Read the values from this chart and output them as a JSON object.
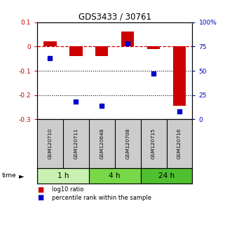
{
  "title": "GDS3433 / 30761",
  "samples": [
    "GSM120710",
    "GSM120711",
    "GSM120648",
    "GSM120708",
    "GSM120715",
    "GSM120716"
  ],
  "log10_ratio": [
    0.022,
    -0.04,
    -0.038,
    0.062,
    -0.01,
    -0.245
  ],
  "percentile_rank": [
    63,
    18,
    14,
    78,
    47,
    8
  ],
  "time_groups": [
    {
      "label": "1 h",
      "start": 0,
      "end": 2,
      "color": "#c8f0b0"
    },
    {
      "label": "4 h",
      "start": 2,
      "end": 4,
      "color": "#78d848"
    },
    {
      "label": "24 h",
      "start": 4,
      "end": 6,
      "color": "#50c030"
    }
  ],
  "bar_color": "#cc0000",
  "dot_color": "#0000cc",
  "ylim_left": [
    -0.3,
    0.1
  ],
  "ylim_right": [
    0,
    100
  ],
  "yticks_left": [
    0.1,
    0.0,
    -0.1,
    -0.2,
    -0.3
  ],
  "yticks_right": [
    100,
    75,
    50,
    25,
    0
  ],
  "hline_y": 0.0,
  "dotted_lines": [
    -0.1,
    -0.2
  ],
  "bar_width": 0.5,
  "dot_size": 22,
  "sample_box_color": "#cccccc",
  "sample_box_border": "#000000",
  "legend_red_label": "log10 ratio",
  "legend_blue_label": "percentile rank within the sample"
}
